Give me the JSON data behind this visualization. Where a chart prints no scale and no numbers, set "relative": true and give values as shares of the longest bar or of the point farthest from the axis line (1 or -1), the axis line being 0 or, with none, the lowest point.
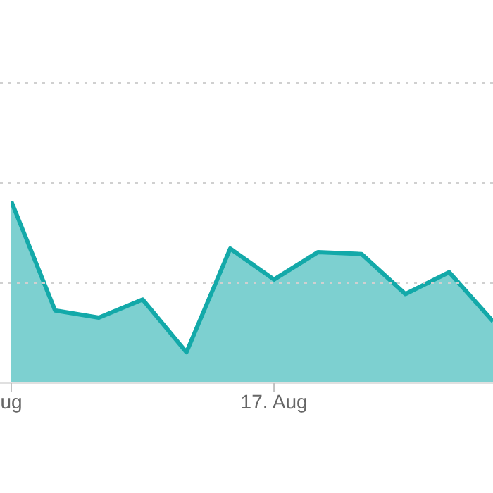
{
  "chart_data": {
    "type": "area",
    "relative": true,
    "categories": [
      "ug",
      null,
      null,
      null,
      null,
      null,
      "17. Aug",
      null,
      null,
      null,
      null,
      null
    ],
    "series": [
      {
        "color": "#13a9a9",
        "values": [
          1,
          0.4,
          0.36,
          0.46,
          0.17,
          0.74,
          0.57,
          0.72,
          0.71,
          0.49,
          0.61,
          0.34
        ]
      }
    ],
    "ref_lines": [
      {
        "axis": "y",
        "value": 0.55,
        "color": "#d0d0d0",
        "line_style": "dotted"
      },
      {
        "axis": "y",
        "value": 1.1,
        "color": "#d0d0d0",
        "line_style": "dotted"
      },
      {
        "axis": "y",
        "value": 1.65,
        "color": "#d0d0d0",
        "line_style": "dotted"
      }
    ],
    "legend": false
  }
}
